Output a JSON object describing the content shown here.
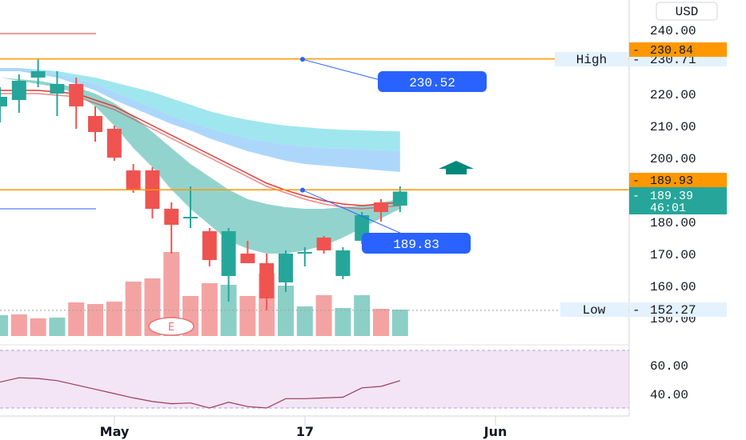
{
  "chart_data": {
    "type": "candlestick",
    "currency": "USD",
    "x_labels": [
      {
        "label": "May",
        "index": 5
      },
      {
        "label": "17",
        "index": 15
      },
      {
        "label": "Jun",
        "index": 25
      }
    ],
    "price_axis": {
      "ticks": [
        {
          "label": "240.00",
          "value": 240
        },
        {
          "label": "220.00",
          "value": 220
        },
        {
          "label": "210.00",
          "value": 210
        },
        {
          "label": "200.00",
          "value": 200
        },
        {
          "label": "180.00",
          "value": 180
        },
        {
          "label": "170.00",
          "value": 170
        },
        {
          "label": "160.00",
          "value": 160
        },
        {
          "label": "150.00",
          "value": 150
        }
      ]
    },
    "candles": [
      {
        "i": 0,
        "o": 216,
        "h": 222,
        "l": 211,
        "c": 219
      },
      {
        "i": 1,
        "o": 218,
        "h": 226,
        "l": 214,
        "c": 224
      },
      {
        "i": 2,
        "o": 225,
        "h": 230.71,
        "l": 222,
        "c": 227
      },
      {
        "i": 3,
        "o": 220,
        "h": 227,
        "l": 213,
        "c": 223
      },
      {
        "i": 4,
        "o": 223,
        "h": 225,
        "l": 209,
        "c": 216
      },
      {
        "i": 5,
        "o": 213,
        "h": 216,
        "l": 205,
        "c": 208
      },
      {
        "i": 6,
        "o": 209,
        "h": 210,
        "l": 199,
        "c": 200
      },
      {
        "i": 7,
        "o": 196,
        "h": 198,
        "l": 189,
        "c": 190
      },
      {
        "i": 8,
        "o": 196,
        "h": 197,
        "l": 181,
        "c": 184
      },
      {
        "i": 9,
        "o": 184,
        "h": 186,
        "l": 170,
        "c": 179
      },
      {
        "i": 10,
        "o": 181,
        "h": 191,
        "l": 178,
        "c": 181.5
      },
      {
        "i": 11,
        "o": 177,
        "h": 178,
        "l": 166,
        "c": 168
      },
      {
        "i": 12,
        "o": 163,
        "h": 178,
        "l": 155,
        "c": 177
      },
      {
        "i": 13,
        "o": 170,
        "h": 174,
        "l": 167,
        "c": 167
      },
      {
        "i": 14,
        "o": 167,
        "h": 170,
        "l": 152.27,
        "c": 156
      },
      {
        "i": 15,
        "o": 161,
        "h": 171,
        "l": 158,
        "c": 170
      },
      {
        "i": 16,
        "o": 170,
        "h": 172,
        "l": 166,
        "c": 170.5
      },
      {
        "i": 17,
        "o": 175,
        "h": 175.5,
        "l": 170,
        "c": 171
      },
      {
        "i": 18,
        "o": 163,
        "h": 172,
        "l": 162,
        "c": 171
      },
      {
        "i": 19,
        "o": 174,
        "h": 183,
        "l": 173,
        "c": 182
      },
      {
        "i": 20,
        "o": 186,
        "h": 187,
        "l": 180,
        "c": 183
      },
      {
        "i": 21,
        "o": 185,
        "h": 191,
        "l": 183,
        "c": 189.39
      }
    ],
    "volume": [
      {
        "i": 0,
        "v": 26,
        "up": true
      },
      {
        "i": 1,
        "v": 27,
        "up": false
      },
      {
        "i": 2,
        "v": 22,
        "up": false
      },
      {
        "i": 3,
        "v": 23,
        "up": true
      },
      {
        "i": 4,
        "v": 42,
        "up": false
      },
      {
        "i": 5,
        "v": 40,
        "up": false
      },
      {
        "i": 6,
        "v": 43,
        "up": false
      },
      {
        "i": 7,
        "v": 68,
        "up": false
      },
      {
        "i": 8,
        "v": 72,
        "up": false
      },
      {
        "i": 9,
        "v": 105,
        "up": false
      },
      {
        "i": 10,
        "v": 50,
        "up": false
      },
      {
        "i": 11,
        "v": 66,
        "up": false
      },
      {
        "i": 12,
        "v": 64,
        "up": true
      },
      {
        "i": 13,
        "v": 50,
        "up": false
      },
      {
        "i": 14,
        "v": 78,
        "up": false
      },
      {
        "i": 15,
        "v": 63,
        "up": true
      },
      {
        "i": 16,
        "v": 37,
        "up": true
      },
      {
        "i": 17,
        "v": 51,
        "up": false
      },
      {
        "i": 18,
        "v": 35,
        "up": true
      },
      {
        "i": 19,
        "v": 51,
        "up": true
      },
      {
        "i": 20,
        "v": 34,
        "up": false
      },
      {
        "i": 21,
        "v": 33,
        "up": true
      }
    ],
    "ema_fast": [
      221,
      221,
      221,
      220.5,
      220,
      218,
      216,
      213,
      210,
      207,
      204,
      201,
      198,
      195,
      192,
      189.8,
      188,
      186.5,
      185.5,
      185,
      185.5,
      186
    ],
    "ema_slow": [
      220,
      220,
      220,
      219.5,
      219,
      217,
      215,
      212,
      209,
      206,
      203,
      200,
      197,
      194,
      191,
      189,
      187,
      185.5,
      184.5,
      184,
      184.5,
      185
    ],
    "cloud_fast_top": [
      228,
      228,
      227.5,
      227,
      226,
      225,
      223.5,
      222,
      220.5,
      218.5,
      216.5,
      214.5,
      213,
      211.8,
      210.8,
      210,
      209.5,
      209,
      208.7,
      208.5,
      208.3,
      208.2
    ],
    "cloud_slow_top": [
      228,
      228,
      227,
      226,
      224.5,
      223,
      220.5,
      218,
      215.5,
      213,
      211,
      209,
      207.5,
      206,
      205,
      204,
      203.5,
      203,
      202.8,
      202.5,
      202.2,
      202
    ],
    "cloud_slow_bottom": [
      227,
      227,
      226,
      225,
      223,
      221,
      218,
      215.5,
      213,
      210.5,
      208.5,
      206,
      204,
      202,
      200.5,
      199,
      198,
      197.5,
      197,
      196.5,
      196,
      195.5
    ],
    "green_cloud_bottom": [
      225,
      224,
      223,
      222,
      220,
      216,
      210,
      203,
      197,
      190,
      184,
      179,
      174,
      171.5,
      170,
      170,
      171,
      172.5,
      175,
      178,
      181,
      184
    ],
    "green_cloud_top": [
      225,
      224.5,
      224,
      223,
      222,
      220,
      217,
      213,
      208,
      203,
      198,
      194,
      190,
      187,
      185.5,
      184.5,
      184,
      184,
      184.5,
      185,
      186,
      187
    ],
    "high": {
      "label": "High",
      "value": "230.71"
    },
    "low": {
      "label": "Low",
      "value": "152.27"
    },
    "tags": {
      "price_line_1": "230.84",
      "price_line_2": "189.93",
      "last_price": "189.39",
      "countdown": "46:01"
    },
    "callouts": [
      {
        "text": "230.52",
        "anchor_i": 15,
        "anchor_price": 230.71
      },
      {
        "text": "189.83",
        "anchor_i": 15,
        "anchor_price": 189.83
      }
    ],
    "horizontal_lines": [
      230.84,
      189.93
    ],
    "earnings_marker": "E",
    "rsi": {
      "ticks": [
        {
          "label": "60.00",
          "value": 60
        },
        {
          "label": "40.00",
          "value": 40
        }
      ],
      "band": [
        70,
        30
      ],
      "values": [
        48,
        51,
        50.5,
        49,
        46,
        43,
        40,
        37,
        34.5,
        33,
        33.5,
        30,
        34,
        31,
        30,
        36.5,
        36.5,
        37,
        37.5,
        44,
        45,
        49
      ]
    }
  },
  "colors": {
    "up": "#26a69a",
    "down": "#ef5350",
    "up_volume": "#8ccfc7",
    "down_volume": "#f4a3a3",
    "orange": "#ff9800",
    "blue": "#2962ff",
    "ema": "#e53935",
    "cloud_blue": "#90caf9",
    "cloud_cyan": "#80deea",
    "cloud_green": "#80cbc4",
    "rsi_band": "#f3e5f5",
    "rsi_line": "#9c3b5a",
    "arrow": "#00897b"
  }
}
